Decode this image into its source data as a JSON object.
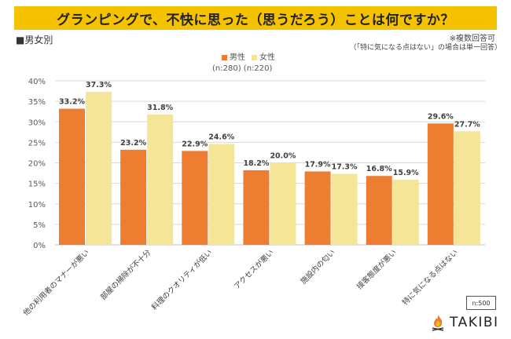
{
  "header": {
    "title": "グランピングで、不快に思った（思うだろう）ことは何ですか？",
    "subtitle": "■男女別",
    "note_multiple": "※複数回答可",
    "note_single": "（「特に気になる点はない」の場合は単一回答）"
  },
  "footer": {
    "sample_size": "n:500",
    "logo_text": "TAKIBI",
    "logo_icon": "campfire-icon"
  },
  "colors": {
    "male": "#ed7d31",
    "female": "#f5e596",
    "title_bg": "#f5c200",
    "grid": "#d9d9d9"
  },
  "chart_data": {
    "type": "bar",
    "title": "グランピングで、不快に思った（思うだろう）ことは何ですか？",
    "xlabel": "",
    "ylabel": "",
    "ylim": [
      0,
      40
    ],
    "yticks": [
      0,
      5,
      10,
      15,
      20,
      25,
      30,
      35,
      40
    ],
    "ytick_labels": [
      "0%",
      "5%",
      "10%",
      "15%",
      "20%",
      "25%",
      "30%",
      "35%",
      "40%"
    ],
    "grid": true,
    "legend_position": "top-center",
    "categories": [
      "他の利用者のマナーが悪い",
      "部屋の掃除が不十分",
      "料理のクオリティが低い",
      "アクセスが悪い",
      "施設内の匂い",
      "接客態度が悪い",
      "特に気になる点はない"
    ],
    "series": [
      {
        "name": "男性",
        "n_label": "(n:280)",
        "values": [
          33.2,
          23.2,
          22.9,
          18.2,
          17.9,
          16.8,
          29.6
        ],
        "labels": [
          "33.2%",
          "23.2%",
          "22.9%",
          "18.2%",
          "17.9%",
          "16.8%",
          "29.6%"
        ]
      },
      {
        "name": "女性",
        "n_label": "(n:220)",
        "values": [
          37.3,
          31.8,
          24.6,
          20.0,
          17.3,
          15.9,
          27.7
        ],
        "labels": [
          "37.3%",
          "31.8%",
          "24.6%",
          "20.0%",
          "17.3%",
          "15.9%",
          "27.7%"
        ]
      }
    ]
  }
}
